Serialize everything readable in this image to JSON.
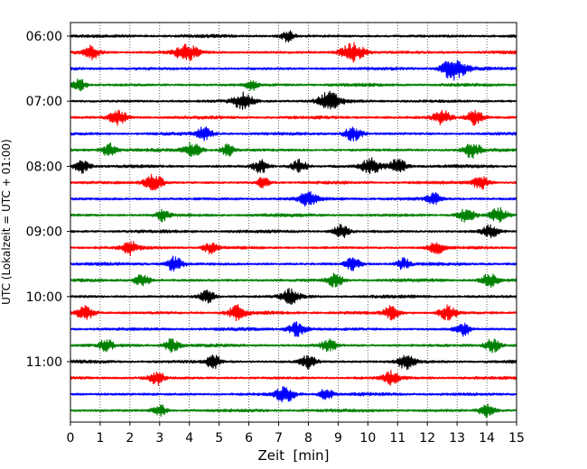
{
  "chart_data": {
    "type": "line",
    "title": "",
    "xlabel": "Zeit  [min]",
    "ylabel": "UTC (Lokalzeit = UTC + 01:00)",
    "xlim": [
      0,
      15
    ],
    "x_ticks": [
      0,
      1,
      2,
      3,
      4,
      5,
      6,
      7,
      8,
      9,
      10,
      11,
      12,
      13,
      14,
      15
    ],
    "grid": "vertical dotted",
    "y_ticks": [
      "06:00",
      "07:00",
      "08:00",
      "09:00",
      "10:00",
      "11:00"
    ],
    "trace_interval_minutes": 15,
    "trace_colors": [
      "#000000",
      "#ff0000",
      "#0000ff",
      "#008000"
    ],
    "series": [
      {
        "start": "06:00",
        "color": "#000000",
        "events": [
          [
            7.3,
            0.35
          ]
        ]
      },
      {
        "start": "06:15",
        "color": "#ff0000",
        "events": [
          [
            0.7,
            0.5
          ],
          [
            3.9,
            0.8
          ],
          [
            9.5,
            0.9
          ]
        ]
      },
      {
        "start": "06:30",
        "color": "#0000ff",
        "events": [
          [
            12.7,
            0.5
          ],
          [
            13.0,
            0.8
          ]
        ]
      },
      {
        "start": "06:45",
        "color": "#008000",
        "events": [
          [
            0.3,
            0.4
          ],
          [
            6.1,
            0.3
          ]
        ]
      },
      {
        "start": "07:00",
        "color": "#000000",
        "events": [
          [
            5.8,
            0.7
          ],
          [
            8.7,
            0.8
          ]
        ]
      },
      {
        "start": "07:15",
        "color": "#ff0000",
        "events": [
          [
            1.6,
            0.6
          ],
          [
            12.5,
            0.6
          ],
          [
            13.6,
            0.6
          ]
        ]
      },
      {
        "start": "07:30",
        "color": "#0000ff",
        "events": [
          [
            4.5,
            0.5
          ],
          [
            9.5,
            0.6
          ]
        ]
      },
      {
        "start": "07:45",
        "color": "#008000",
        "events": [
          [
            1.3,
            0.5
          ],
          [
            4.1,
            0.6
          ],
          [
            5.3,
            0.4
          ],
          [
            13.5,
            0.6
          ]
        ]
      },
      {
        "start": "08:00",
        "color": "#000000",
        "events": [
          [
            0.4,
            0.5
          ],
          [
            6.4,
            0.5
          ],
          [
            7.7,
            0.5
          ],
          [
            10.1,
            0.7
          ],
          [
            11.0,
            0.6
          ]
        ]
      },
      {
        "start": "08:15",
        "color": "#ff0000",
        "events": [
          [
            2.8,
            0.7
          ],
          [
            6.5,
            0.4
          ],
          [
            13.8,
            0.5
          ]
        ]
      },
      {
        "start": "08:30",
        "color": "#0000ff",
        "events": [
          [
            8.0,
            0.6
          ],
          [
            12.2,
            0.4
          ]
        ]
      },
      {
        "start": "08:45",
        "color": "#008000",
        "events": [
          [
            3.1,
            0.4
          ],
          [
            13.3,
            0.6
          ],
          [
            14.4,
            0.6
          ]
        ]
      },
      {
        "start": "09:00",
        "color": "#000000",
        "events": [
          [
            9.1,
            0.5
          ],
          [
            14.1,
            0.5
          ]
        ]
      },
      {
        "start": "09:15",
        "color": "#ff0000",
        "events": [
          [
            2.0,
            0.5
          ],
          [
            4.7,
            0.4
          ],
          [
            12.3,
            0.5
          ]
        ]
      },
      {
        "start": "09:30",
        "color": "#0000ff",
        "events": [
          [
            3.5,
            0.6
          ],
          [
            9.5,
            0.5
          ],
          [
            11.2,
            0.4
          ]
        ]
      },
      {
        "start": "09:45",
        "color": "#008000",
        "events": [
          [
            2.4,
            0.5
          ],
          [
            8.9,
            0.5
          ],
          [
            14.1,
            0.6
          ]
        ]
      },
      {
        "start": "10:00",
        "color": "#000000",
        "events": [
          [
            4.6,
            0.5
          ],
          [
            7.4,
            0.6
          ]
        ]
      },
      {
        "start": "10:15",
        "color": "#ff0000",
        "events": [
          [
            0.5,
            0.6
          ],
          [
            5.6,
            0.6
          ],
          [
            10.8,
            0.5
          ],
          [
            12.7,
            0.6
          ]
        ]
      },
      {
        "start": "10:30",
        "color": "#0000ff",
        "events": [
          [
            7.6,
            0.6
          ],
          [
            13.2,
            0.5
          ]
        ]
      },
      {
        "start": "10:45",
        "color": "#008000",
        "events": [
          [
            1.2,
            0.4
          ],
          [
            3.4,
            0.5
          ],
          [
            8.7,
            0.5
          ],
          [
            14.2,
            0.5
          ]
        ]
      },
      {
        "start": "11:00",
        "color": "#000000",
        "events": [
          [
            4.8,
            0.5
          ],
          [
            8.0,
            0.5
          ],
          [
            11.3,
            0.6
          ]
        ]
      },
      {
        "start": "11:15",
        "color": "#ff0000",
        "events": [
          [
            2.9,
            0.5
          ],
          [
            10.8,
            0.5
          ]
        ]
      },
      {
        "start": "11:30",
        "color": "#0000ff",
        "events": [
          [
            7.2,
            0.7
          ],
          [
            8.6,
            0.4
          ]
        ]
      },
      {
        "start": "11:45",
        "color": "#008000",
        "events": [
          [
            3.0,
            0.4
          ],
          [
            14.0,
            0.5
          ]
        ]
      }
    ]
  }
}
